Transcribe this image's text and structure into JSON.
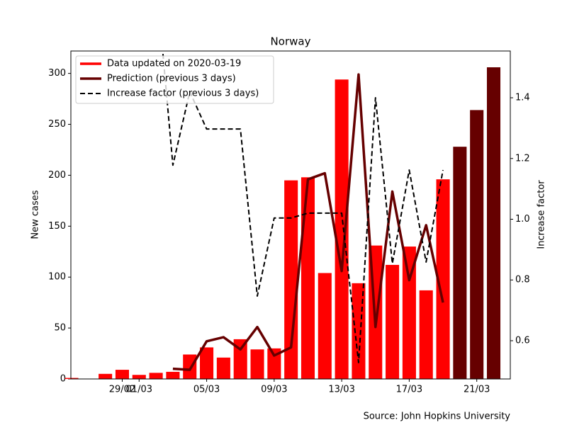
{
  "chart_data": {
    "type": "bar",
    "title": "Norway",
    "source": "Source: John Hopkins University",
    "ylabel": "New cases",
    "y2label": "Increase factor",
    "categories": [
      null,
      null,
      null,
      "29/02",
      "01/03",
      null,
      null,
      null,
      "05/03",
      null,
      null,
      null,
      "09/03",
      null,
      null,
      null,
      "13/03",
      null,
      null,
      null,
      "17/03",
      null,
      null,
      null,
      "21/03",
      null
    ],
    "series": [
      {
        "name": "Data updated on 2020-03-19",
        "color": "#ff0000",
        "type": "bar",
        "values": [
          1,
          0,
          5,
          9,
          4,
          6,
          7,
          24,
          31,
          21,
          39,
          29,
          30,
          195,
          198,
          104,
          294,
          94,
          131,
          112,
          130,
          87,
          196,
          null,
          null,
          null
        ]
      },
      {
        "name": "Prediction (previous 3 days)",
        "color": "#660000",
        "type": "line",
        "values": [
          null,
          null,
          null,
          null,
          null,
          null,
          10,
          9,
          37,
          41,
          29,
          51,
          23,
          31,
          196,
          202,
          106,
          299,
          51,
          184,
          97,
          151,
          75,
          null,
          null,
          null
        ],
        "bars": [
          null,
          null,
          null,
          null,
          null,
          null,
          null,
          null,
          null,
          null,
          null,
          null,
          null,
          null,
          null,
          null,
          null,
          null,
          null,
          null,
          null,
          null,
          null,
          228,
          264,
          306
        ]
      },
      {
        "name": "Increase factor (previous 3 days)",
        "color": "#000000",
        "type": "line",
        "dashed": true,
        "axis": "y2",
        "values": [
          null,
          null,
          null,
          null,
          null,
          1.8,
          1.178,
          1.42,
          1.297,
          1.297,
          1.297,
          0.747,
          1.004,
          1.004,
          1.02,
          1.02,
          1.02,
          0.528,
          1.4,
          0.854,
          1.162,
          0.859,
          1.162,
          null,
          null,
          null
        ]
      }
    ],
    "ylim": [
      0,
      322
    ],
    "yticks": [
      0,
      50,
      100,
      150,
      200,
      250,
      300
    ],
    "y2lim": [
      0.474,
      1.554
    ],
    "y2ticks": [
      0.6,
      0.8,
      {
        "value": 1.0,
        "label": "1.0"
      },
      1.2,
      1.4
    ],
    "legend": "upper left"
  }
}
